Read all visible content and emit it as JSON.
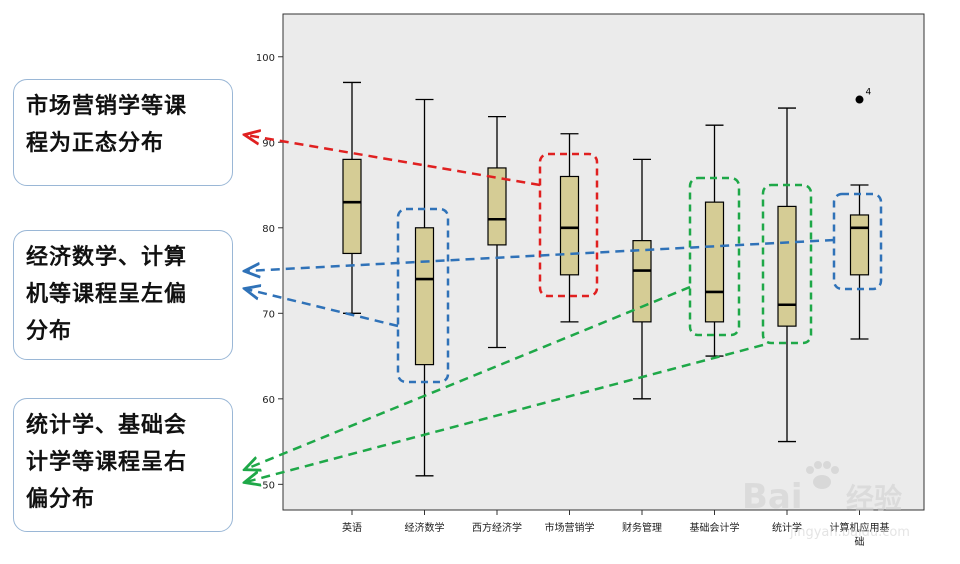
{
  "chart_data": {
    "type": "boxplot",
    "categories": [
      "英语",
      "经济数学",
      "西方经济学",
      "市场营销学",
      "财务管理",
      "基础会计学",
      "统计学",
      "计算机应用基础"
    ],
    "category_tick_labels": [
      "英语",
      "经济数学",
      "西方经济学",
      "市场营销学",
      "财务管理",
      "基础会计学",
      "统计学",
      "计算机应用基",
      "础"
    ],
    "boxes": [
      {
        "name": "英语",
        "min": 70,
        "q1": 77,
        "median": 83,
        "q3": 88,
        "max": 97
      },
      {
        "name": "经济数学",
        "min": 51,
        "q1": 64,
        "median": 74,
        "q3": 80,
        "max": 95
      },
      {
        "name": "西方经济学",
        "min": 66,
        "q1": 78,
        "median": 81,
        "q3": 87,
        "max": 93
      },
      {
        "name": "市场营销学",
        "min": 69,
        "q1": 74.5,
        "median": 80,
        "q3": 86,
        "max": 91
      },
      {
        "name": "财务管理",
        "min": 60,
        "q1": 69,
        "median": 75,
        "q3": 78.5,
        "max": 88
      },
      {
        "name": "基础会计学",
        "min": 65,
        "q1": 69,
        "median": 72.5,
        "q3": 83,
        "max": 92
      },
      {
        "name": "统计学",
        "min": 55,
        "q1": 68.5,
        "median": 71,
        "q3": 82.5,
        "max": 94
      },
      {
        "name": "计算机应用基础",
        "min": 67,
        "q1": 74.5,
        "median": 80,
        "q3": 81.5,
        "max": 85
      }
    ],
    "outliers": [
      {
        "category": "计算机应用基础",
        "value": 95,
        "label": "4"
      }
    ],
    "ylim": [
      47,
      105
    ],
    "yticks": [
      50,
      60,
      70,
      80,
      90,
      100
    ],
    "grid": false,
    "colors": {
      "box_fill": "#d5cc95",
      "plot_background": "#ebebeb",
      "red": "#e02020",
      "blue": "#2f72b8",
      "green": "#1ea848",
      "callout_border": "#9ab7d6"
    }
  },
  "callouts": {
    "normal": [
      "市场营销学等课",
      "程为正态分布"
    ],
    "left_skew": [
      "经济数学、计算",
      "机等课程呈左偏",
      "分布"
    ],
    "right_skew": [
      "统计学、基础会",
      "计学等课程呈右",
      "偏分布"
    ]
  },
  "watermark": {
    "text": "Bai",
    "suffix": "经验",
    "url": "jingyan.baidu.com"
  }
}
